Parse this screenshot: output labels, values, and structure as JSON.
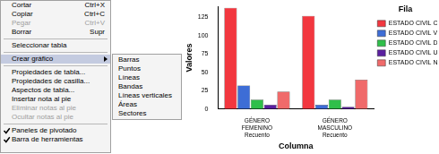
{
  "menu": {
    "groups": [
      [
        {
          "label": "Cortar",
          "shortcut": "Ctrl+X"
        },
        {
          "label": "Copiar",
          "shortcut": "Ctrl+C"
        },
        {
          "label": "Pegar",
          "shortcut": "Ctrl+V",
          "disabled": true
        },
        {
          "label": "Borrar",
          "shortcut": "Supr"
        }
      ],
      [
        {
          "label": "Seleccionar tabla"
        }
      ],
      [
        {
          "label": "Crear gráfico",
          "submenu": [
            "Barras",
            "Puntos",
            "Líneas",
            "Bandas",
            "Líneas verticales",
            "Áreas",
            "Sectores"
          ]
        }
      ],
      [
        {
          "label": "Propiedades de tabla..."
        },
        {
          "label": "Propiedades de casilla..."
        },
        {
          "label": "Aspectos de tabla..."
        },
        {
          "label": "Insertar nota al pie"
        },
        {
          "label": "Eliminar notas al pie",
          "disabled": true
        },
        {
          "label": "Ocultar notas al pie",
          "disabled": true
        }
      ],
      [
        {
          "label": "Paneles de pivotado",
          "checked": true
        },
        {
          "label": "Barra de herramientas",
          "checked": true
        }
      ]
    ]
  },
  "chart_data": {
    "type": "bar",
    "x_label": "Columna",
    "y_label": "Valores",
    "legend_title": "Fila",
    "categories": [
      "GÉNERO FEMENINO Recuento",
      "GÉNERO MASCULINO Recuento"
    ],
    "series": [
      {
        "name": "ESTADO CIVIL CASADO",
        "color": "#f2373f",
        "values": [
          138,
          127
        ]
      },
      {
        "name": "ESTADO CIVIL VIUDO",
        "color": "#3d6dd6",
        "values": [
          32,
          6
        ]
      },
      {
        "name": "ESTADO CIVIL DIVORCIADO",
        "color": "#2fbf4a",
        "values": [
          13,
          13
        ]
      },
      {
        "name": "ESTADO CIVIL UNIÓN LIBRE",
        "color": "#5a1fa0",
        "values": [
          6,
          3
        ]
      },
      {
        "name": "ESTADO CIVIL NUNCA CASADO",
        "color": "#f06a6a",
        "values": [
          24,
          40
        ]
      }
    ],
    "ylim": [
      0,
      140
    ],
    "yticks": [
      0,
      25,
      50,
      75,
      100,
      125
    ],
    "grid": false,
    "legend": "upper right"
  }
}
